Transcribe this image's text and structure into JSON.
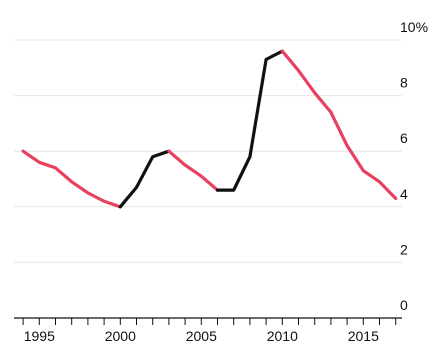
{
  "chart_data": {
    "type": "line",
    "title": "",
    "xlabel": "",
    "ylabel": "",
    "y_unit_suffix": "%",
    "xlim": [
      1993.5,
      2018.5
    ],
    "ylim": [
      0,
      10
    ],
    "y_ticks": [
      0,
      2,
      4,
      6,
      8,
      10
    ],
    "y_tick_labels": [
      "0",
      "2",
      "4",
      "6",
      "8",
      "10%"
    ],
    "x_ticks": [
      1995,
      2000,
      2005,
      2010,
      2015
    ],
    "x_tick_labels": [
      "1995",
      "2000",
      "2005",
      "2010",
      "2015"
    ],
    "minor_x_ticks_every": 1,
    "minor_x_ticks_from": 1994,
    "minor_x_ticks_to": 2017,
    "grid": true,
    "legend": "none",
    "colors": {
      "declining": "#e8415f",
      "rising": "#111111",
      "grid": "#e6e6e6",
      "text": "#111111"
    },
    "x": [
      1994,
      1995,
      1996,
      1997,
      1998,
      1999,
      2000,
      2001,
      2002,
      2003,
      2004,
      2005,
      2006,
      2007,
      2008,
      2009,
      2010,
      2011,
      2012,
      2013,
      2014,
      2015,
      2016,
      2017
    ],
    "y": [
      6.0,
      5.6,
      5.4,
      4.9,
      4.5,
      4.2,
      4.0,
      4.7,
      5.8,
      6.0,
      5.5,
      5.1,
      4.6,
      4.6,
      5.8,
      9.3,
      9.6,
      8.9,
      8.1,
      7.4,
      6.2,
      5.3,
      4.9,
      4.3
    ],
    "segments": [
      {
        "color_key": "declining",
        "from_year": 1994,
        "to_year": 2000
      },
      {
        "color_key": "rising",
        "from_year": 2000,
        "to_year": 2003
      },
      {
        "color_key": "declining",
        "from_year": 2003,
        "to_year": 2006
      },
      {
        "color_key": "rising",
        "from_year": 2006,
        "to_year": 2010
      },
      {
        "color_key": "declining",
        "from_year": 2010,
        "to_year": 2017
      }
    ]
  }
}
